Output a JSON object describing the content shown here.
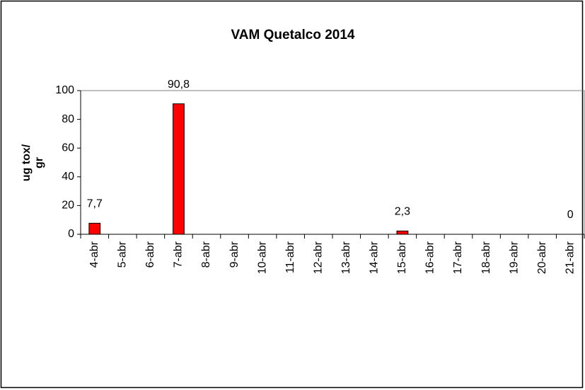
{
  "chart_data": {
    "type": "bar",
    "title": "VAM Quetalco 2014",
    "ylabel": [
      "ug tox/",
      "gr"
    ],
    "categories": [
      "4-abr",
      "5-abr",
      "6-abr",
      "7-abr",
      "8-abr",
      "9-abr",
      "10-abr",
      "11-abr",
      "12-abr",
      "13-abr",
      "14-abr",
      "15-abr",
      "16-abr",
      "17-abr",
      "18-abr",
      "19-abr",
      "20-abr",
      "21-abr"
    ],
    "values": [
      7.7,
      null,
      null,
      90.8,
      null,
      null,
      null,
      null,
      null,
      null,
      null,
      2.3,
      null,
      null,
      null,
      null,
      null,
      0
    ],
    "value_labels": [
      "7,7",
      null,
      null,
      "90,8",
      null,
      null,
      null,
      null,
      null,
      null,
      null,
      "2,3",
      null,
      null,
      null,
      null,
      null,
      "0"
    ],
    "color": "#ff0000",
    "ylim": [
      0,
      100
    ],
    "yticks": [
      0,
      20,
      40,
      60,
      80,
      100
    ],
    "grid": false
  }
}
